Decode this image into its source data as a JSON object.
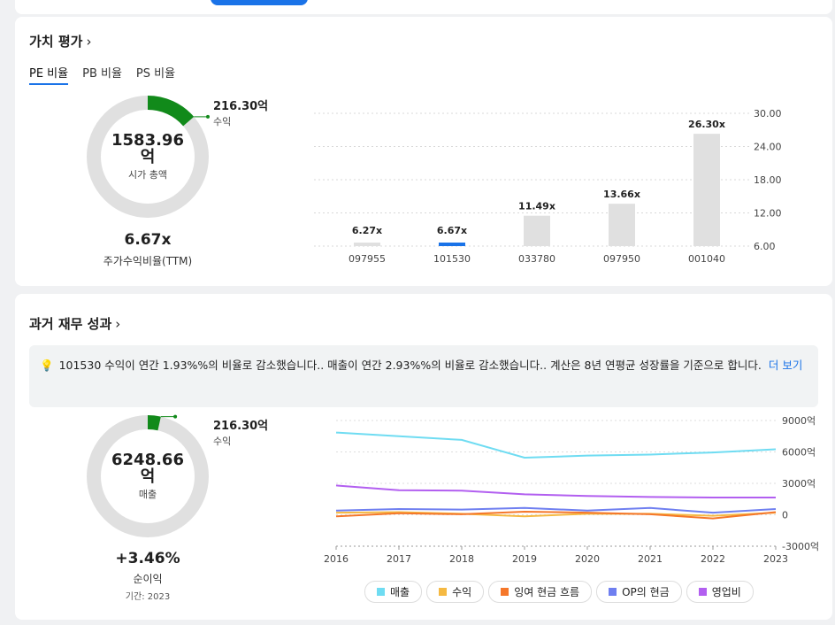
{
  "colors": {
    "accent": "#1a73e8",
    "donut_fill": "#118a1a",
    "donut_track": "#e0e0e0",
    "bar": "#e0e0e0",
    "bar_highlight": "#1a73e8"
  },
  "valuation": {
    "title": "가치 평가",
    "tabs": [
      {
        "label": "PE 비율",
        "active": true
      },
      {
        "label": "PB 비율",
        "active": false
      },
      {
        "label": "PS 비율",
        "active": false
      }
    ],
    "donut": {
      "value_number": "1583.96",
      "value_unit": "억",
      "label": "시가 총액",
      "side_value": "216.30억",
      "side_label": "수익",
      "fraction": 0.1366
    },
    "ratio_value": "6.67x",
    "ratio_label": "주가수익비율(TTM)"
  },
  "history": {
    "title": "과거 재무 성과",
    "info_text": "101530 수익이 연간 1.93%%의 비율로 감소했습니다.. 매출이 연간 2.93%%의 비율로 감소했습니다.. 계산은 8년 연평균 성장률을 기준으로 합니다.",
    "info_more": "더 보기",
    "donut": {
      "value_number": "6248.66",
      "value_unit": "억",
      "label": "매출",
      "side_value": "216.30억",
      "side_label": "수익",
      "fraction": 0.0346
    },
    "margin_value": "+3.46%",
    "margin_label": "순이익",
    "period_label": "기간: 2023"
  },
  "chart_data": [
    {
      "type": "bar",
      "categories": [
        "097955",
        "101530",
        "033780",
        "097950",
        "001040"
      ],
      "values": [
        6.27,
        6.67,
        11.49,
        13.66,
        26.3
      ],
      "data_labels": [
        "6.27x",
        "6.67x",
        "11.49x",
        "13.66x",
        "26.30x"
      ],
      "highlight_index": 1,
      "ylim": [
        6,
        30
      ],
      "yticks": [
        "6.00",
        "12.00",
        "18.00",
        "24.00",
        "30.00"
      ],
      "grid": true
    },
    {
      "type": "line",
      "x": [
        "2016",
        "2017",
        "2018",
        "2019",
        "2020",
        "2021",
        "2022",
        "2023"
      ],
      "ylim": [
        -3000,
        9000
      ],
      "yticks": [
        "-3000억",
        "0",
        "3000억",
        "6000억",
        "9000억"
      ],
      "grid": true,
      "legend_position": "bottom",
      "series": [
        {
          "name": "매출",
          "color": "#6fdcf2",
          "values": [
            7850,
            7500,
            7150,
            5450,
            5650,
            5750,
            5950,
            6250
          ]
        },
        {
          "name": "수익",
          "color": "#f5b942",
          "values": [
            200,
            250,
            100,
            -150,
            100,
            100,
            -100,
            200
          ]
        },
        {
          "name": "잉여 현금 흐름",
          "color": "#f5772a",
          "values": [
            -150,
            150,
            50,
            300,
            200,
            50,
            -350,
            250
          ]
        },
        {
          "name": "OP의 현금",
          "color": "#6f7ff0",
          "values": [
            400,
            550,
            500,
            650,
            400,
            650,
            200,
            550
          ]
        },
        {
          "name": "영업비",
          "color": "#b25ff0",
          "values": [
            2800,
            2350,
            2300,
            1950,
            1800,
            1700,
            1650,
            1650
          ]
        }
      ]
    }
  ]
}
